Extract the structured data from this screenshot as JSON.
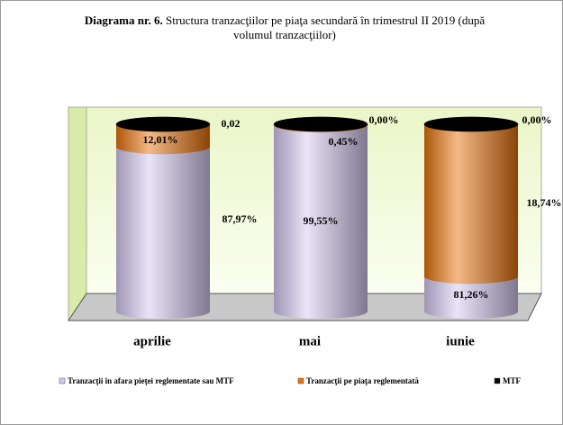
{
  "chart_data": {
    "type": "stacked-cylinder",
    "title_label": "Diagrama nr. 6.",
    "title": "Structura tranzacţiilor pe piaţa secundară în trimestrul II 2019 (după volumul tranzacţiilor)",
    "categories": [
      "aprilie",
      "mai",
      "iunie"
    ],
    "ylim": [
      0,
      100
    ],
    "series": [
      {
        "name": "Tranzacţii în afara pieţei reglementate sau MTF",
        "color": "#d4c8f0",
        "values": [
          87.97,
          99.55,
          18.74
        ],
        "value_labels": [
          "87,97%",
          "99,55%",
          "18,74%"
        ]
      },
      {
        "name": "Tranzacţii pe piaţa reglementată",
        "color": "#e8720c",
        "values": [
          12.01,
          0.45,
          81.26
        ],
        "value_labels": [
          "12,01%",
          "0,45%",
          "81,26%"
        ]
      },
      {
        "name": "MTF",
        "color": "#000000",
        "values": [
          0.02,
          0.0,
          0.0
        ],
        "value_labels": [
          "0,02",
          "0,00%",
          "0,00%"
        ]
      }
    ]
  }
}
